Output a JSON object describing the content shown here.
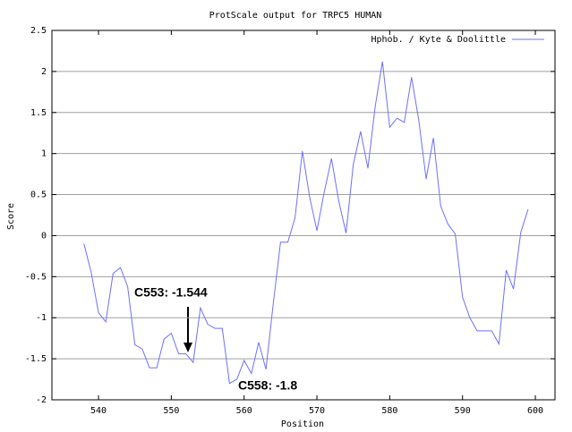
{
  "chart_data": {
    "type": "line",
    "title": "ProtScale output for TRPC5 HUMAN",
    "xlabel": "Position",
    "ylabel": "Score",
    "x": [
      538,
      539,
      540,
      541,
      542,
      543,
      544,
      545,
      546,
      547,
      548,
      549,
      550,
      551,
      552,
      553,
      554,
      555,
      556,
      557,
      558,
      559,
      560,
      561,
      562,
      563,
      564,
      565,
      566,
      567,
      568,
      569,
      570,
      571,
      572,
      573,
      574,
      575,
      576,
      577,
      578,
      579,
      580,
      581,
      582,
      583,
      584,
      585,
      586,
      587,
      588,
      589,
      590,
      591,
      592,
      593,
      594,
      595,
      596,
      597,
      598,
      599
    ],
    "series": [
      {
        "name": "Hphob. / Kyte & Doolittle",
        "color": "#6f6fff",
        "values": [
          -0.1,
          -0.45,
          -0.94,
          -1.05,
          -0.46,
          -0.39,
          -0.62,
          -1.33,
          -1.38,
          -1.61,
          -1.61,
          -1.26,
          -1.19,
          -1.44,
          -1.44,
          -1.544,
          -0.88,
          -1.08,
          -1.13,
          -1.13,
          -1.8,
          -1.75,
          -1.52,
          -1.68,
          -1.3,
          -1.63,
          -0.83,
          -0.08,
          -0.08,
          0.22,
          1.03,
          0.47,
          0.06,
          0.53,
          0.94,
          0.42,
          0.03,
          0.87,
          1.27,
          0.82,
          1.57,
          2.12,
          1.32,
          1.43,
          1.38,
          1.93,
          1.4,
          0.69,
          1.19,
          0.36,
          0.14,
          0.02,
          -0.75,
          -1.0,
          -1.16,
          -1.16,
          -1.16,
          -1.32,
          -0.42,
          -0.65,
          0.04,
          0.32
        ]
      }
    ],
    "xlim": [
      533.6,
      602.7
    ],
    "ylim": [
      -2,
      2.5
    ],
    "xticks": [
      540,
      550,
      560,
      570,
      580,
      590,
      600
    ],
    "yticks": [
      -2,
      -1.5,
      -1,
      -0.5,
      0,
      0.5,
      1,
      1.5,
      2,
      2.5
    ],
    "grid": true,
    "legend": "upper right",
    "annotations": [
      "C553: -1.544",
      "C558: -1.8"
    ]
  }
}
